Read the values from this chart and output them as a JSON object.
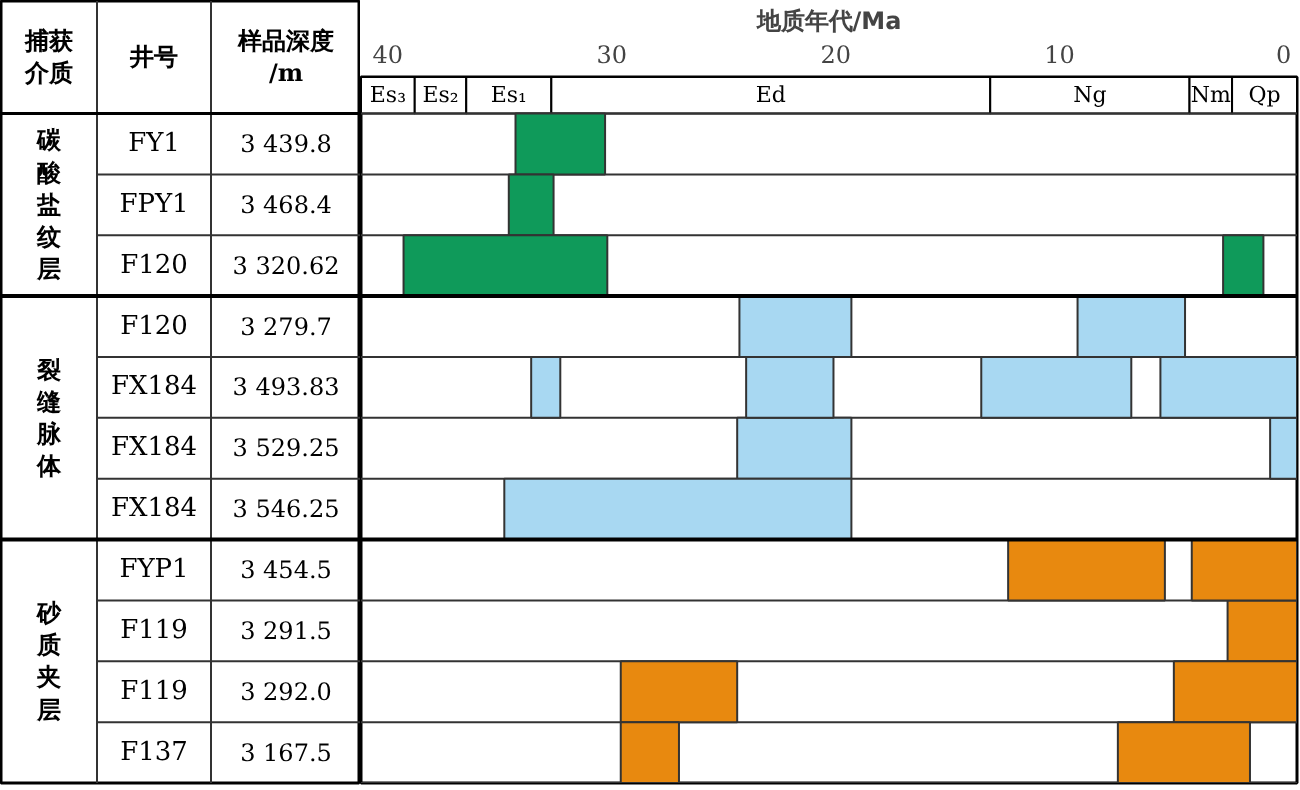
{
  "chart_data": {
    "type": "bar",
    "orientation": "horizontal",
    "xlabel": "地质年代/Ma",
    "ylabel": "井号",
    "categories": [
      "FY1",
      "FPY1",
      "F120",
      "F120",
      "FX184",
      "FX184",
      "FX184",
      "FYP1",
      "F119",
      "F119",
      "F137"
    ],
    "xlim": [
      41.2,
      -0.6
    ],
    "xticks": [
      40,
      30,
      20,
      10,
      0
    ],
    "bands": [
      {
        "axis": "x",
        "from": 41.2,
        "to": 38.8,
        "label": "Es₃"
      },
      {
        "axis": "x",
        "from": 38.8,
        "to": 36.5,
        "label": "Es₂"
      },
      {
        "axis": "x",
        "from": 36.5,
        "to": 32.7,
        "label": "Es₁"
      },
      {
        "axis": "x",
        "from": 32.7,
        "to": 13.1,
        "label": "Ed"
      },
      {
        "axis": "x",
        "from": 13.1,
        "to": 4.2,
        "label": "Ng"
      },
      {
        "axis": "x",
        "from": 4.2,
        "to": 2.3,
        "label": "Nm"
      },
      {
        "axis": "x",
        "from": 2.3,
        "to": -0.6,
        "label": "Qp"
      }
    ],
    "grid": "y",
    "annotations": [
      "捕获介质",
      "样品深度/m",
      "3 439.8",
      "3 468.4",
      "3 320.62",
      "3 279.7",
      "3 493.83",
      "3 529.25",
      "3 546.25",
      "3 454.5",
      "3 291.5",
      "3 292.0",
      "3 167.5",
      "碳酸盐纹层",
      "裂缝脉体",
      "砂质夹层"
    ],
    "series": [
      {
        "color": "#0f9a5a",
        "base": [
          30.3,
          32.6,
          30.2,
          null,
          null,
          null,
          null,
          null,
          null,
          null,
          null
        ],
        "values": [
          4.0,
          2.0,
          9.1,
          null,
          null,
          null,
          null,
          null,
          null,
          null,
          null
        ]
      },
      {
        "color": "#0f9a5a",
        "base": [
          null,
          null,
          0.9,
          null,
          null,
          null,
          null,
          null,
          null,
          null,
          null
        ],
        "values": [
          null,
          null,
          1.8,
          null,
          null,
          null,
          null,
          null,
          null,
          null,
          null
        ]
      },
      {
        "color": "#a8d8f2",
        "base": [
          null,
          null,
          null,
          19.3,
          32.3,
          19.3,
          19.3,
          null,
          null,
          null,
          null
        ],
        "values": [
          null,
          null,
          null,
          5.0,
          1.3,
          5.1,
          15.5,
          null,
          null,
          null,
          null
        ]
      },
      {
        "color": "#a8d8f2",
        "base": [
          null,
          null,
          null,
          4.4,
          20.1,
          -0.6,
          null,
          null,
          null,
          null,
          null
        ],
        "values": [
          null,
          null,
          null,
          4.8,
          3.9,
          1.2,
          null,
          null,
          null,
          null,
          null
        ]
      },
      {
        "color": "#a8d8f2",
        "base": [
          null,
          null,
          null,
          null,
          6.8,
          null,
          null,
          null,
          null,
          null,
          null
        ],
        "values": [
          null,
          null,
          null,
          null,
          6.7,
          null,
          null,
          null,
          null,
          null,
          null
        ]
      },
      {
        "color": "#a8d8f2",
        "base": [
          null,
          null,
          null,
          null,
          -0.6,
          null,
          null,
          null,
          null,
          null,
          null
        ],
        "values": [
          null,
          null,
          null,
          null,
          6.1,
          null,
          null,
          null,
          null,
          null,
          null
        ]
      },
      {
        "color": "#e8890f",
        "base": [
          null,
          null,
          null,
          null,
          null,
          null,
          null,
          5.3,
          -0.6,
          24.4,
          27.0
        ],
        "values": [
          null,
          null,
          null,
          null,
          null,
          null,
          null,
          7.0,
          3.1,
          5.2,
          2.6
        ]
      },
      {
        "color": "#e8890f",
        "base": [
          null,
          null,
          null,
          null,
          null,
          null,
          null,
          -0.6,
          null,
          -0.6,
          1.5
        ],
        "values": [
          null,
          null,
          null,
          null,
          null,
          null,
          null,
          4.7,
          null,
          5.5,
          5.9
        ]
      }
    ]
  }
}
